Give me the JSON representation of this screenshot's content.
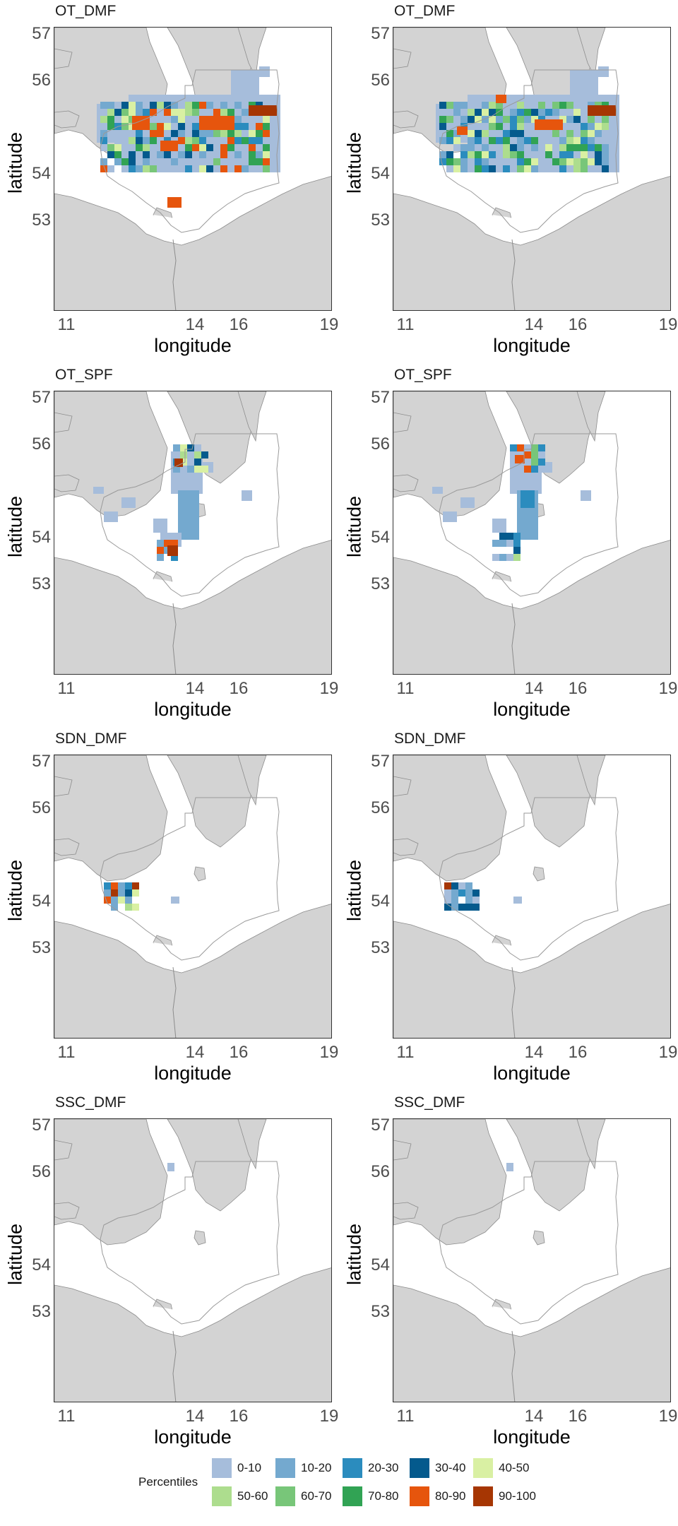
{
  "x_axis": {
    "label": "longitude",
    "ticks": [
      "11",
      "14",
      "16",
      "19"
    ]
  },
  "y_axis": {
    "label": "latitude",
    "ticks": [
      "57",
      "56",
      "54",
      "53"
    ]
  },
  "colors": {
    "land": "#d3d3d3",
    "coast_line": "#8c8c8c",
    "boundary": "#9a9a9a"
  },
  "panels": [
    {
      "title": "OT_DMF"
    },
    {
      "title": "OT_DMF"
    },
    {
      "title": "OT_SPF"
    },
    {
      "title": "OT_SPF"
    },
    {
      "title": "SDN_DMF"
    },
    {
      "title": "SDN_DMF"
    },
    {
      "title": "SSC_DMF"
    },
    {
      "title": "SSC_DMF"
    }
  ],
  "legend": {
    "title": "Percentiles",
    "items": [
      {
        "label": "0-10",
        "color": "#a6bddb"
      },
      {
        "label": "10-20",
        "color": "#74a9cf"
      },
      {
        "label": "20-30",
        "color": "#2b8cbe"
      },
      {
        "label": "30-40",
        "color": "#045a8d"
      },
      {
        "label": "40-50",
        "color": "#d9f0a3"
      },
      {
        "label": "50-60",
        "color": "#addd8e"
      },
      {
        "label": "60-70",
        "color": "#78c679"
      },
      {
        "label": "70-80",
        "color": "#31a354"
      },
      {
        "label": "80-90",
        "color": "#e6550d"
      },
      {
        "label": "90-100",
        "color": "#a63603"
      }
    ]
  }
}
